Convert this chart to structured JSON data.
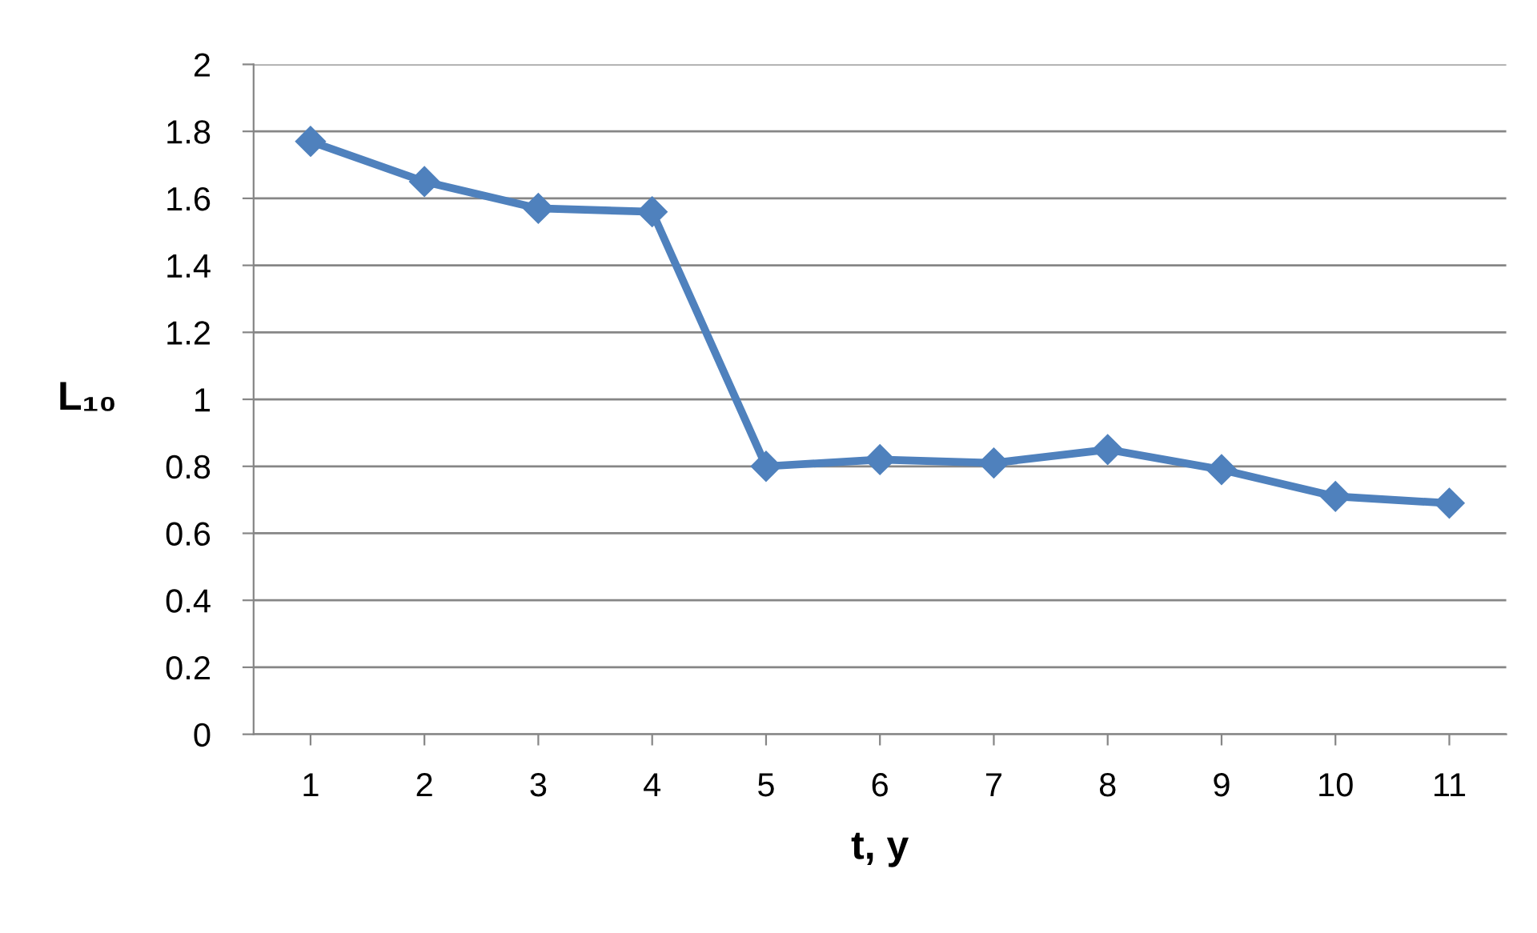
{
  "chart_data": {
    "type": "line",
    "xlabel": "t, y",
    "ylabel": "L₁₀",
    "categories": [
      "1",
      "2",
      "3",
      "4",
      "5",
      "6",
      "7",
      "8",
      "9",
      "10",
      "11"
    ],
    "series": [
      {
        "color": "#4f81bd",
        "values": [
          1.77,
          1.65,
          1.57,
          1.56,
          0.8,
          0.82,
          0.81,
          0.85,
          0.79,
          0.71,
          0.69
        ]
      }
    ],
    "ylim": [
      0,
      2
    ],
    "yticks": [
      0,
      0.2,
      0.4,
      0.6,
      0.8,
      1,
      1.2,
      1.4,
      1.6,
      1.8,
      2
    ],
    "grid": "y",
    "marker": "diamond",
    "line_style": "solid"
  }
}
